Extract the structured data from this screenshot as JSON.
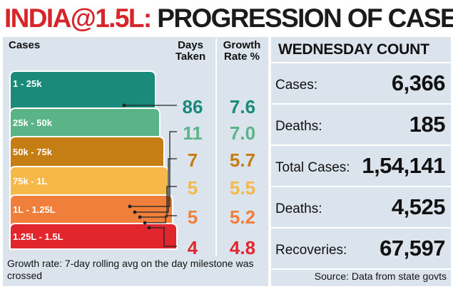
{
  "title": {
    "prefix": "INDIA@1.5L:",
    "main": "PROGRESSION OF CASES"
  },
  "left_panel": {
    "header_cases": "Cases",
    "header_days": [
      "Days",
      "Taken"
    ],
    "header_growth": [
      "Growth",
      "Rate %"
    ],
    "footnote": "Growth rate: 7-day rolling avg on the day milestone was crossed"
  },
  "chart_data": {
    "type": "table",
    "title": "PROGRESSION OF CASES",
    "columns": [
      "Cases",
      "Days Taken",
      "Growth Rate %"
    ],
    "rows": [
      {
        "range": "1 - 25k",
        "days": 86,
        "growth": 7.6,
        "color": "#1a8a7a"
      },
      {
        "range": "25k - 50k",
        "days": 11,
        "growth": 7.0,
        "color": "#5bb487"
      },
      {
        "range": "50k - 75k",
        "days": 7,
        "growth": 5.7,
        "color": "#c47e14"
      },
      {
        "range": "75k - 1L",
        "days": 5,
        "growth": 5.5,
        "color": "#f7b84a"
      },
      {
        "range": "1L - 1.25L",
        "days": 5,
        "growth": 5.2,
        "color": "#ef7f3a"
      },
      {
        "range": "1.25L - 1.5L",
        "days": 4,
        "growth": 4.8,
        "color": "#e2262e"
      }
    ],
    "value_colors": [
      "#1a8a7a",
      "#5bb487",
      "#c47e14",
      "#f7b84a",
      "#ef7f3a",
      "#e2262e"
    ]
  },
  "right_panel": {
    "title": "WEDNESDAY COUNT",
    "rows": [
      {
        "label": "Cases:",
        "value": "6,366"
      },
      {
        "label": "Deaths:",
        "value": "185"
      },
      {
        "label": "Total Cases:",
        "value": "1,54,141"
      },
      {
        "label": "Deaths:",
        "value": "4,525"
      },
      {
        "label": "Recoveries:",
        "value": "67,597"
      }
    ],
    "source": "Source: Data from state govts"
  },
  "colors": {
    "panel_bg": "#dbe4ed",
    "title_red": "#d7262b",
    "connector": "#222222"
  }
}
